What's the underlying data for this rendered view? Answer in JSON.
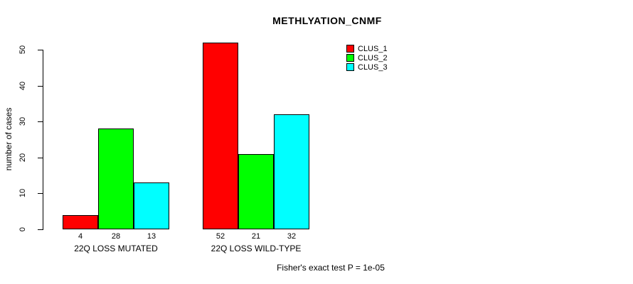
{
  "chart_data": {
    "type": "bar",
    "title": "METHLYATION_CNMF",
    "ylabel": "number of cases",
    "xlabel": "",
    "categories": [
      "22Q LOSS MUTATED",
      "22Q LOSS WILD-TYPE"
    ],
    "series": [
      {
        "name": "CLUS_1",
        "color": "#FF0000",
        "values": [
          4,
          52
        ]
      },
      {
        "name": "CLUS_2",
        "color": "#00FF00",
        "values": [
          28,
          21
        ]
      },
      {
        "name": "CLUS_3",
        "color": "#00FFFF",
        "values": [
          13,
          32
        ]
      }
    ],
    "bar_value_labels": [
      [
        4,
        28,
        13
      ],
      [
        52,
        21,
        32
      ]
    ],
    "y_ticks": [
      0,
      10,
      20,
      30,
      40,
      50
    ],
    "ylim": [
      0,
      52
    ],
    "grid": false,
    "legend_position": "top-right",
    "annotation": "Fisher's exact test P = 1e-05"
  }
}
